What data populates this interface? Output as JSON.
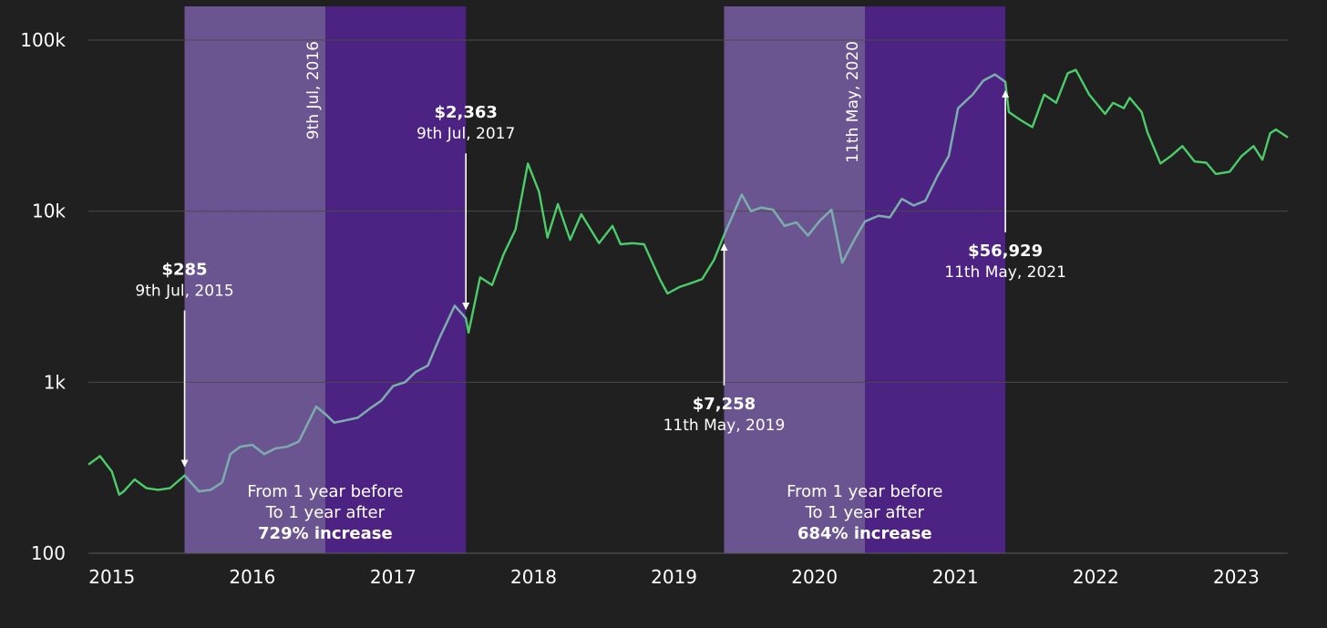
{
  "chart_data": {
    "type": "line",
    "title": "",
    "xlabel": "",
    "ylabel": "",
    "y_scale": "log",
    "ylim": [
      100,
      100000
    ],
    "xlim": [
      "2014-11-01",
      "2023-05-15"
    ],
    "grid": "horizontal",
    "y_ticks": [
      {
        "value": 100,
        "label": "100"
      },
      {
        "value": 1000,
        "label": "1k"
      },
      {
        "value": 10000,
        "label": "10k"
      },
      {
        "value": 100000,
        "label": "100k"
      }
    ],
    "x_ticks": [
      {
        "date": "2015-01-01",
        "label": "2015"
      },
      {
        "date": "2016-01-01",
        "label": "2016"
      },
      {
        "date": "2017-01-01",
        "label": "2017"
      },
      {
        "date": "2018-01-01",
        "label": "2018"
      },
      {
        "date": "2019-01-01",
        "label": "2019"
      },
      {
        "date": "2020-01-01",
        "label": "2020"
      },
      {
        "date": "2021-01-01",
        "label": "2021"
      },
      {
        "date": "2022-01-01",
        "label": "2022"
      },
      {
        "date": "2023-01-01",
        "label": "2023"
      }
    ],
    "colors": {
      "background": "#202020",
      "grid": "#4a4a4a",
      "line_outside": "#4ccd6a",
      "line_inside": "#7fa9b0",
      "band_before": "#6b5591",
      "band_after": "#4c2383",
      "annotation": "#ffffff"
    },
    "halving_periods": [
      {
        "halving_label": "9th Jul, 2016",
        "halving_date": "2016-07-09",
        "start": "2015-07-09",
        "end": "2017-07-09",
        "note_line1": "From 1 year before",
        "note_line2": "To  1 year after",
        "note_line3": "729% increase"
      },
      {
        "halving_label": "11th May, 2020",
        "halving_date": "2020-05-11",
        "start": "2019-05-11",
        "end": "2021-05-11",
        "note_line1": "From 1 year before",
        "note_line2": "To  1 year after",
        "note_line3": "684% increase"
      }
    ],
    "annotations": [
      {
        "price": "$285",
        "date_label": "9th Jul, 2015",
        "date": "2015-07-09",
        "value": 285,
        "arrow": "down"
      },
      {
        "price": "$2,363",
        "date_label": "9th Jul, 2017",
        "date": "2017-07-09",
        "value": 2363,
        "arrow": "down"
      },
      {
        "price": "$7,258",
        "date_label": "11th May, 2019",
        "date": "2019-05-11",
        "value": 7258,
        "arrow": "up"
      },
      {
        "price": "$56,929",
        "date_label": "11th May, 2021",
        "date": "2021-05-11",
        "value": 56929,
        "arrow": "up"
      }
    ],
    "series": [
      {
        "values": [
          [
            "2014-11-01",
            330
          ],
          [
            "2014-12-01",
            370
          ],
          [
            "2015-01-01",
            300
          ],
          [
            "2015-01-20",
            220
          ],
          [
            "2015-02-01",
            230
          ],
          [
            "2015-03-01",
            270
          ],
          [
            "2015-04-01",
            240
          ],
          [
            "2015-05-01",
            235
          ],
          [
            "2015-06-01",
            240
          ],
          [
            "2015-07-09",
            285
          ],
          [
            "2015-08-15",
            230
          ],
          [
            "2015-09-15",
            235
          ],
          [
            "2015-10-15",
            260
          ],
          [
            "2015-11-05",
            380
          ],
          [
            "2015-12-01",
            420
          ],
          [
            "2016-01-01",
            430
          ],
          [
            "2016-02-01",
            380
          ],
          [
            "2016-03-01",
            410
          ],
          [
            "2016-04-01",
            420
          ],
          [
            "2016-05-01",
            450
          ],
          [
            "2016-06-15",
            720
          ],
          [
            "2016-07-09",
            650
          ],
          [
            "2016-08-01",
            580
          ],
          [
            "2016-09-01",
            600
          ],
          [
            "2016-10-01",
            620
          ],
          [
            "2016-11-01",
            700
          ],
          [
            "2016-12-01",
            780
          ],
          [
            "2017-01-01",
            950
          ],
          [
            "2017-02-01",
            1000
          ],
          [
            "2017-03-01",
            1150
          ],
          [
            "2017-04-01",
            1250
          ],
          [
            "2017-05-01",
            1800
          ],
          [
            "2017-06-10",
            2800
          ],
          [
            "2017-07-09",
            2363
          ],
          [
            "2017-07-16",
            1950
          ],
          [
            "2017-08-15",
            4100
          ],
          [
            "2017-09-15",
            3700
          ],
          [
            "2017-10-15",
            5600
          ],
          [
            "2017-11-15",
            7800
          ],
          [
            "2017-12-17",
            19000
          ],
          [
            "2018-01-15",
            13000
          ],
          [
            "2018-02-06",
            7000
          ],
          [
            "2018-03-05",
            11000
          ],
          [
            "2018-04-06",
            6800
          ],
          [
            "2018-05-05",
            9600
          ],
          [
            "2018-06-20",
            6500
          ],
          [
            "2018-07-25",
            8200
          ],
          [
            "2018-08-15",
            6400
          ],
          [
            "2018-09-15",
            6500
          ],
          [
            "2018-10-15",
            6400
          ],
          [
            "2018-11-25",
            4000
          ],
          [
            "2018-12-15",
            3300
          ],
          [
            "2019-01-15",
            3600
          ],
          [
            "2019-02-15",
            3800
          ],
          [
            "2019-03-15",
            4000
          ],
          [
            "2019-04-15",
            5200
          ],
          [
            "2019-05-11",
            7258
          ],
          [
            "2019-06-26",
            12500
          ],
          [
            "2019-07-20",
            10000
          ],
          [
            "2019-08-15",
            10500
          ],
          [
            "2019-09-15",
            10200
          ],
          [
            "2019-10-15",
            8200
          ],
          [
            "2019-11-15",
            8600
          ],
          [
            "2019-12-15",
            7200
          ],
          [
            "2020-01-15",
            8800
          ],
          [
            "2020-02-14",
            10200
          ],
          [
            "2020-03-13",
            5000
          ],
          [
            "2020-04-15",
            6900
          ],
          [
            "2020-05-11",
            8700
          ],
          [
            "2020-06-15",
            9400
          ],
          [
            "2020-07-15",
            9200
          ],
          [
            "2020-08-15",
            11800
          ],
          [
            "2020-09-15",
            10800
          ],
          [
            "2020-10-15",
            11500
          ],
          [
            "2020-11-15",
            16000
          ],
          [
            "2020-12-15",
            21000
          ],
          [
            "2021-01-08",
            40000
          ],
          [
            "2021-02-15",
            48000
          ],
          [
            "2021-03-15",
            58000
          ],
          [
            "2021-04-14",
            63000
          ],
          [
            "2021-05-11",
            56929
          ],
          [
            "2021-05-20",
            38000
          ],
          [
            "2021-06-20",
            34000
          ],
          [
            "2021-07-20",
            31000
          ],
          [
            "2021-08-20",
            48000
          ],
          [
            "2021-09-20",
            43000
          ],
          [
            "2021-10-20",
            64000
          ],
          [
            "2021-11-10",
            67000
          ],
          [
            "2021-12-15",
            48000
          ],
          [
            "2022-01-25",
            37000
          ],
          [
            "2022-02-15",
            43000
          ],
          [
            "2022-03-15",
            40000
          ],
          [
            "2022-03-30",
            46000
          ],
          [
            "2022-04-30",
            38000
          ],
          [
            "2022-05-15",
            29000
          ],
          [
            "2022-06-18",
            19000
          ],
          [
            "2022-07-15",
            21000
          ],
          [
            "2022-08-14",
            24000
          ],
          [
            "2022-09-15",
            19500
          ],
          [
            "2022-10-15",
            19200
          ],
          [
            "2022-11-09",
            16500
          ],
          [
            "2022-12-15",
            17000
          ],
          [
            "2023-01-15",
            21000
          ],
          [
            "2023-02-15",
            24000
          ],
          [
            "2023-03-10",
            20000
          ],
          [
            "2023-03-30",
            28500
          ],
          [
            "2023-04-14",
            30000
          ],
          [
            "2023-05-15",
            27000
          ]
        ]
      }
    ]
  }
}
